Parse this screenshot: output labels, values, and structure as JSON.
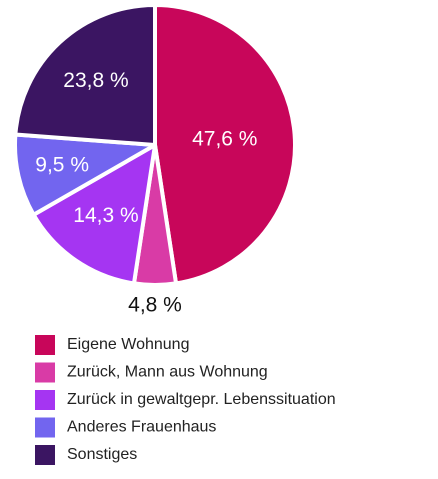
{
  "chart_data": {
    "type": "pie",
    "categories": [
      "Eigene Wohnung",
      "Zurück, Mann aus Wohnung",
      "Zurück in gewaltgepr. Lebenssituation",
      "Anderes Frauenhaus",
      "Sonstiges"
    ],
    "values": [
      47.6,
      4.8,
      14.3,
      9.5,
      23.8
    ],
    "value_labels": [
      "47,6 %",
      "4,8 %",
      "14,3 %",
      "9,5 %",
      "23,8 %"
    ],
    "colors": [
      "#c8065a",
      "#d93ba6",
      "#a535f2",
      "#7265ef",
      "#3b1562"
    ]
  }
}
